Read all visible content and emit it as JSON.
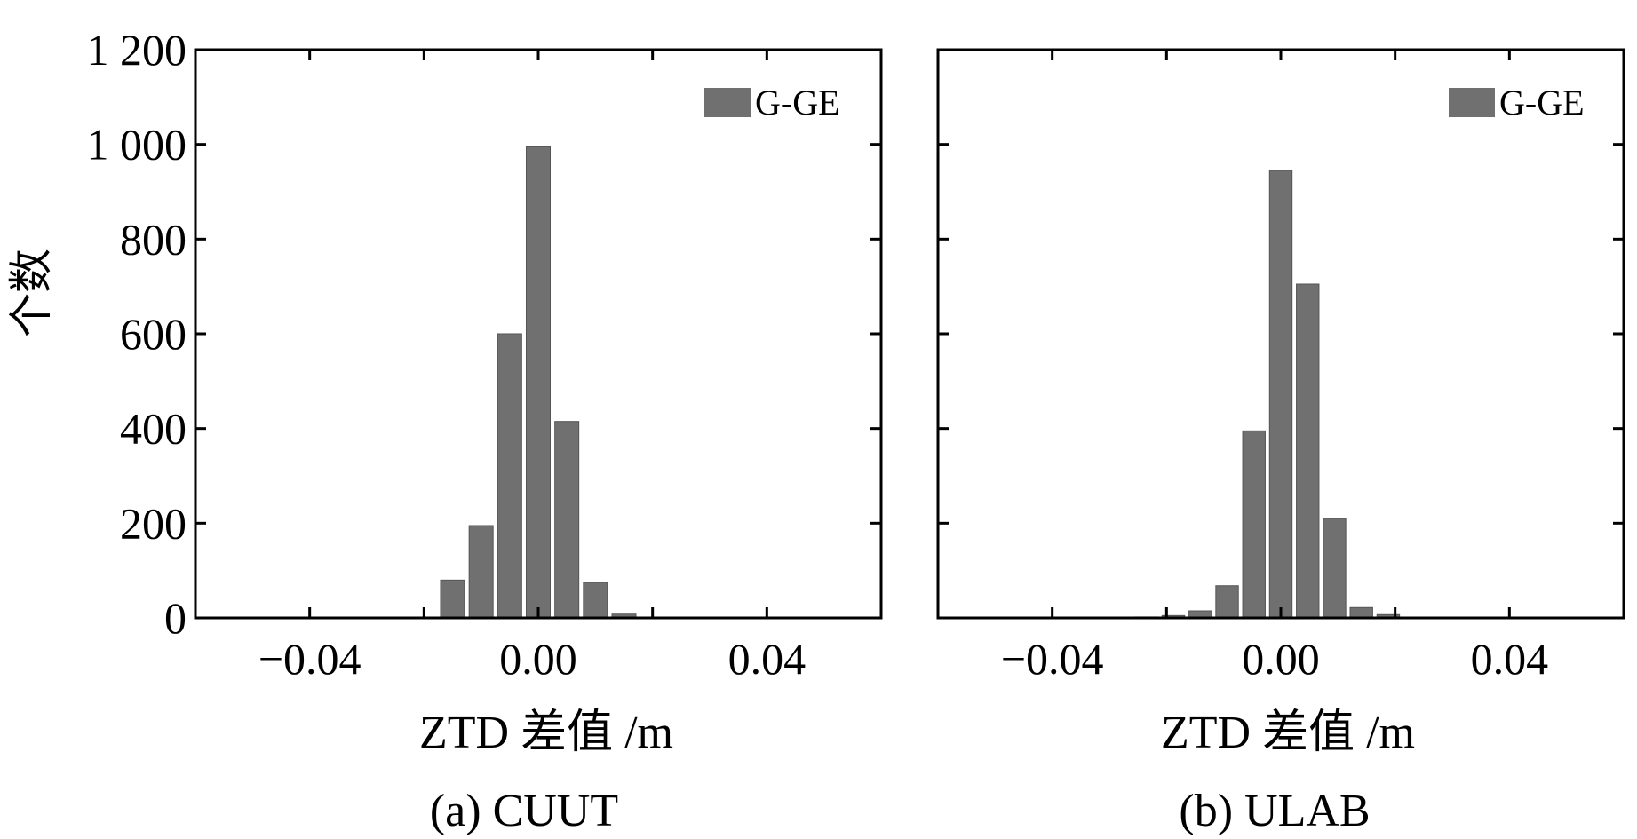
{
  "figure": {
    "y_label": "个数",
    "bar_color": "#707070",
    "axis_color": "#000000"
  },
  "chart_data": [
    {
      "type": "bar",
      "panel_caption": "(a) CUUT",
      "xlabel": "ZTD 差值 /m",
      "ylabel": "个数",
      "legend": "G-GE",
      "legend_position": "top-right",
      "xlim": [
        -0.06,
        0.06
      ],
      "ylim": [
        0,
        1200
      ],
      "xticks": [
        -0.04,
        0.0,
        0.04
      ],
      "xtick_labels": [
        "−0.04",
        "0.00",
        "0.04"
      ],
      "yticks": [
        0,
        200,
        400,
        600,
        800,
        1000,
        1200
      ],
      "ytick_labels": [
        "0",
        "200",
        "400",
        "600",
        "800",
        "1 000",
        "1 200"
      ],
      "show_y_tick_labels": true,
      "bin_width": 0.005,
      "bins": [
        -0.015,
        -0.01,
        -0.005,
        0.0,
        0.005,
        0.01,
        0.015
      ],
      "values": [
        80,
        195,
        600,
        995,
        415,
        75,
        8
      ]
    },
    {
      "type": "bar",
      "panel_caption": "(b) ULAB",
      "xlabel": "ZTD 差值 /m",
      "ylabel": "",
      "legend": "G-GE",
      "legend_position": "top-right",
      "xlim": [
        -0.06,
        0.06
      ],
      "ylim": [
        0,
        1200
      ],
      "xticks": [
        -0.04,
        0.0,
        0.04
      ],
      "xtick_labels": [
        "−0.04",
        "0.00",
        "0.04"
      ],
      "yticks": [
        0,
        200,
        400,
        600,
        800,
        1000,
        1200
      ],
      "ytick_labels": [],
      "show_y_tick_labels": false,
      "bin_width": 0.0047,
      "bins": [
        -0.0235,
        -0.0188,
        -0.0141,
        -0.0094,
        -0.0047,
        0.0,
        0.0047,
        0.0094,
        0.0141,
        0.0188
      ],
      "values": [
        2,
        5,
        15,
        68,
        395,
        945,
        705,
        210,
        22,
        7
      ]
    }
  ]
}
